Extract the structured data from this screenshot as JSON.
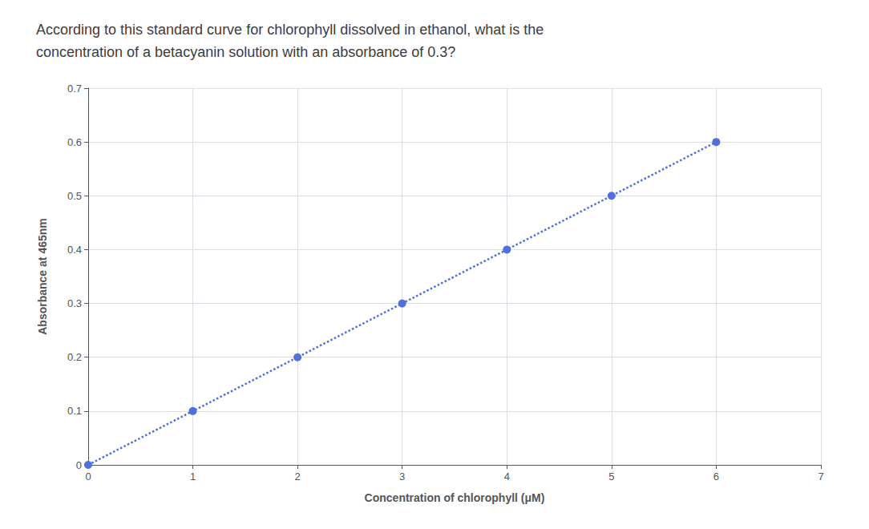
{
  "chart_data": {
    "type": "line",
    "title": "According to this standard curve for chlorophyll dissolved in ethanol, what is the\nconcentration of a betacyanin solution with an absorbance of 0.3?",
    "x": [
      0,
      1,
      2,
      3,
      4,
      5,
      6
    ],
    "values": [
      0.0,
      0.1,
      0.2,
      0.3,
      0.4,
      0.5,
      0.6
    ],
    "xlabel": "Concentration of chlorophyll (μM)",
    "ylabel": "Absorbance at 465nm",
    "xlim": [
      0,
      7
    ],
    "ylim": [
      0,
      0.7
    ],
    "xticks": [
      0,
      1,
      2,
      3,
      4,
      5,
      6,
      7
    ],
    "yticks": [
      0,
      0.1,
      0.2,
      0.3,
      0.4,
      0.5,
      0.6,
      0.7
    ],
    "marker": "circle",
    "line_style": "dotted",
    "grid": true
  }
}
